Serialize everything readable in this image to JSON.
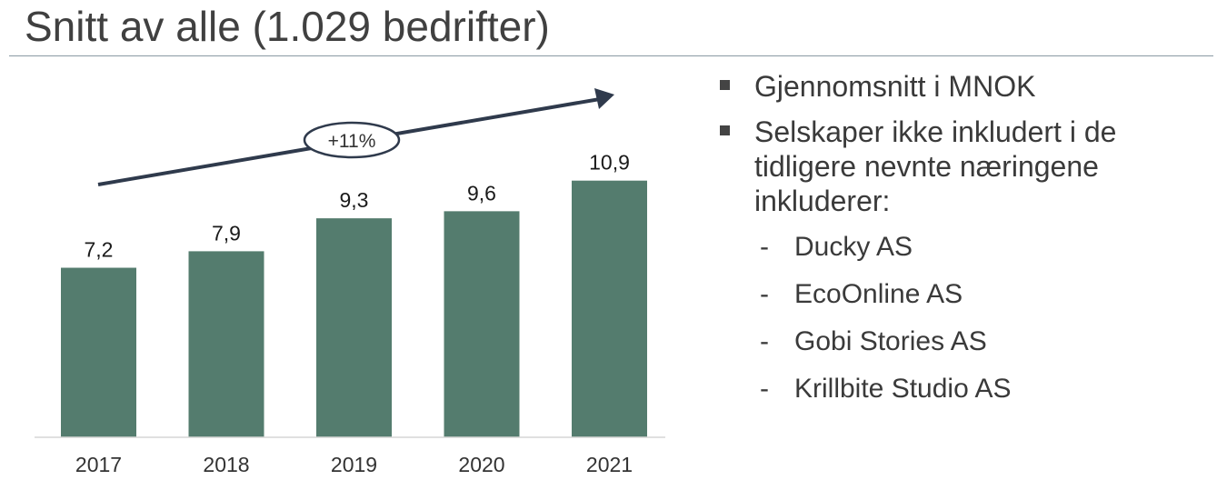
{
  "header": {
    "title": "Snitt av alle (1.029 bedrifter)"
  },
  "chart_data": {
    "type": "bar",
    "categories": [
      "2017",
      "2018",
      "2019",
      "2020",
      "2021"
    ],
    "values": [
      7.2,
      7.9,
      9.3,
      9.6,
      10.9
    ],
    "value_labels": [
      "7,2",
      "7,9",
      "9,3",
      "9,6",
      "10,9"
    ],
    "title": "",
    "xlabel": "",
    "ylabel": "",
    "ylim": [
      0,
      11
    ],
    "grid": false,
    "bar_color": "#547c6e",
    "trend_annotation": "+11%"
  },
  "notes": {
    "bullets": [
      {
        "text": "Gjennomsnitt i MNOK"
      },
      {
        "text": "Selskaper ikke inkludert i de tidligere nevnte næringene inkluderer:"
      }
    ],
    "sub_dash": "-",
    "sub_items": [
      "Ducky AS",
      "EcoOnline AS",
      "Gobi Stories AS",
      "Krillbite Studio AS"
    ]
  },
  "colors": {
    "bar": "#547c6e",
    "arrow": "#2f3a4c",
    "text": "#3a3a3a"
  }
}
